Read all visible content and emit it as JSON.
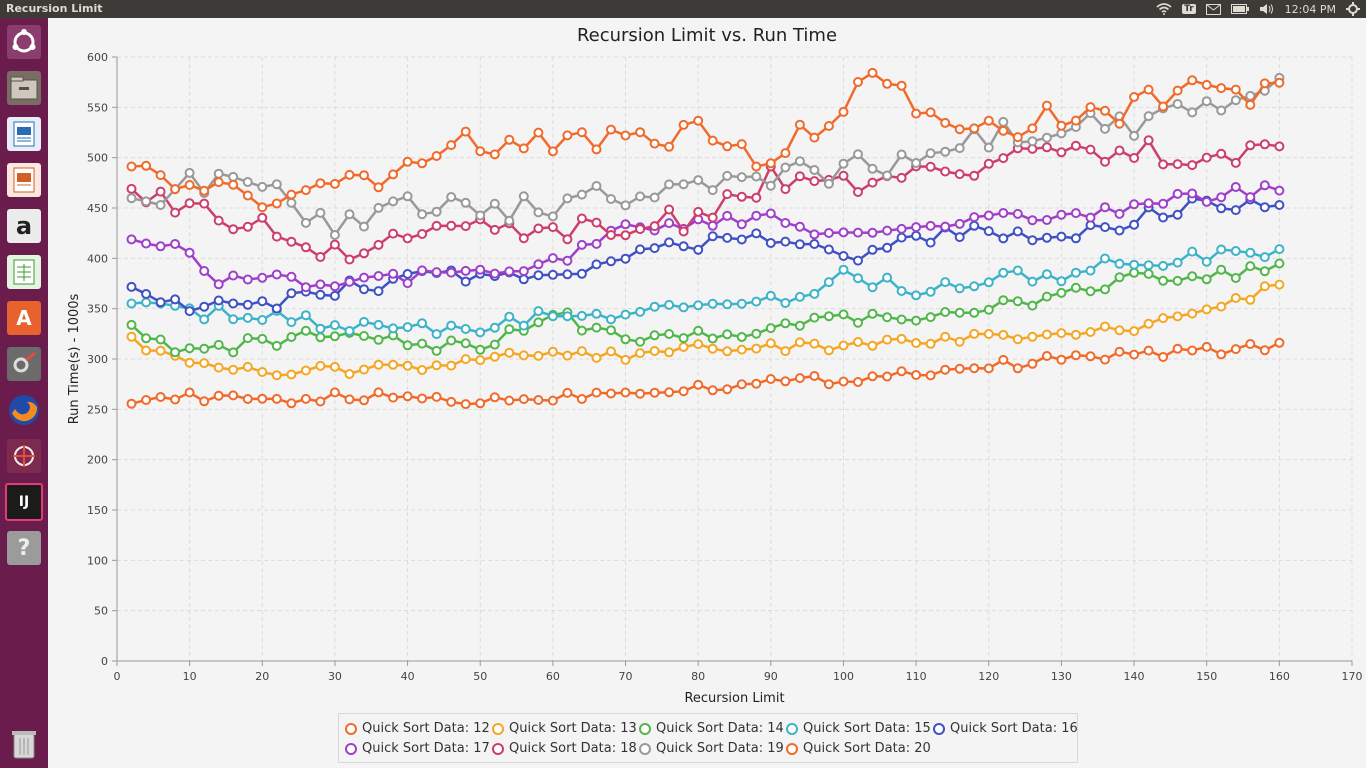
{
  "window": {
    "title": "Recursion Limit"
  },
  "tray": {
    "keyboard": "Tr",
    "time": "12:04 PM"
  },
  "launcher": {
    "items": [
      {
        "name": "ubuntu-dash-icon"
      },
      {
        "name": "files-icon"
      },
      {
        "name": "writer-icon"
      },
      {
        "name": "impress-icon"
      },
      {
        "name": "amazon-icon",
        "glyph": "a"
      },
      {
        "name": "calc-icon"
      },
      {
        "name": "software-center-icon",
        "glyph": "A"
      },
      {
        "name": "system-settings-icon"
      },
      {
        "name": "firefox-icon"
      },
      {
        "name": "screenshot-icon"
      },
      {
        "name": "intellij-icon",
        "glyph": "IJ"
      },
      {
        "name": "unknown-app-icon",
        "glyph": "?"
      },
      {
        "name": "trash-icon"
      }
    ]
  },
  "chart_data": {
    "type": "line",
    "title": "Recursion Limit vs. Run Time",
    "xlabel": "Recursion Limit",
    "ylabel": "Run Time(s) - 1000s",
    "xlim": [
      0,
      170
    ],
    "ylim": [
      0,
      600
    ],
    "xticks": [
      0,
      10,
      20,
      30,
      40,
      50,
      60,
      70,
      80,
      90,
      100,
      110,
      120,
      130,
      140,
      150,
      160,
      170
    ],
    "yticks": [
      0,
      50,
      100,
      150,
      200,
      250,
      300,
      350,
      400,
      450,
      500,
      550,
      600
    ],
    "grid": true,
    "legend_position": "bottom",
    "x_start": 2,
    "x_step": 2,
    "series": [
      {
        "name": "Quick Sort Data: 12",
        "color": "#f06b2b",
        "anchors": [
          [
            2,
            260
          ],
          [
            10,
            262
          ],
          [
            20,
            258
          ],
          [
            30,
            262
          ],
          [
            40,
            262
          ],
          [
            50,
            258
          ],
          [
            60,
            262
          ],
          [
            70,
            268
          ],
          [
            80,
            272
          ],
          [
            90,
            277
          ],
          [
            100,
            280
          ],
          [
            110,
            287
          ],
          [
            120,
            293
          ],
          [
            130,
            300
          ],
          [
            140,
            305
          ],
          [
            150,
            308
          ],
          [
            160,
            312
          ]
        ]
      },
      {
        "name": "Quick Sort Data: 13",
        "color": "#f5a623",
        "anchors": [
          [
            2,
            318
          ],
          [
            10,
            292
          ],
          [
            20,
            287
          ],
          [
            30,
            290
          ],
          [
            40,
            290
          ],
          [
            50,
            300
          ],
          [
            60,
            305
          ],
          [
            70,
            302
          ],
          [
            80,
            310
          ],
          [
            90,
            312
          ],
          [
            100,
            312
          ],
          [
            110,
            318
          ],
          [
            120,
            322
          ],
          [
            130,
            328
          ],
          [
            140,
            332
          ],
          [
            150,
            345
          ],
          [
            160,
            373
          ]
        ]
      },
      {
        "name": "Quick Sort Data: 14",
        "color": "#52b74b",
        "anchors": [
          [
            2,
            333
          ],
          [
            10,
            305
          ],
          [
            20,
            318
          ],
          [
            30,
            325
          ],
          [
            40,
            318
          ],
          [
            50,
            310
          ],
          [
            60,
            345
          ],
          [
            70,
            320
          ],
          [
            80,
            322
          ],
          [
            90,
            330
          ],
          [
            100,
            340
          ],
          [
            110,
            345
          ],
          [
            120,
            350
          ],
          [
            130,
            360
          ],
          [
            140,
            383
          ],
          [
            150,
            385
          ],
          [
            160,
            390
          ]
        ]
      },
      {
        "name": "Quick Sort Data: 15",
        "color": "#3db3c9",
        "anchors": [
          [
            2,
            358
          ],
          [
            10,
            345
          ],
          [
            20,
            345
          ],
          [
            30,
            330
          ],
          [
            40,
            330
          ],
          [
            50,
            328
          ],
          [
            60,
            345
          ],
          [
            70,
            345
          ],
          [
            80,
            352
          ],
          [
            90,
            355
          ],
          [
            100,
            382
          ],
          [
            110,
            370
          ],
          [
            120,
            380
          ],
          [
            130,
            385
          ],
          [
            140,
            398
          ],
          [
            150,
            400
          ],
          [
            160,
            405
          ]
        ]
      },
      {
        "name": "Quick Sort Data: 16",
        "color": "#3f51c3",
        "anchors": [
          [
            2,
            368
          ],
          [
            10,
            352
          ],
          [
            20,
            352
          ],
          [
            30,
            368
          ],
          [
            40,
            380
          ],
          [
            50,
            385
          ],
          [
            60,
            385
          ],
          [
            70,
            400
          ],
          [
            80,
            415
          ],
          [
            90,
            420
          ],
          [
            100,
            400
          ],
          [
            110,
            420
          ],
          [
            120,
            430
          ],
          [
            130,
            418
          ],
          [
            140,
            440
          ],
          [
            150,
            455
          ],
          [
            160,
            455
          ]
        ]
      },
      {
        "name": "Quick Sort Data: 17",
        "color": "#a03fc9",
        "anchors": [
          [
            2,
            418
          ],
          [
            10,
            410
          ],
          [
            14,
            378
          ],
          [
            20,
            378
          ],
          [
            30,
            378
          ],
          [
            40,
            382
          ],
          [
            50,
            385
          ],
          [
            60,
            398
          ],
          [
            70,
            428
          ],
          [
            80,
            435
          ],
          [
            90,
            440
          ],
          [
            100,
            422
          ],
          [
            110,
            428
          ],
          [
            120,
            440
          ],
          [
            130,
            442
          ],
          [
            140,
            450
          ],
          [
            150,
            462
          ],
          [
            160,
            468
          ]
        ]
      },
      {
        "name": "Quick Sort Data: 18",
        "color": "#cc3f6b",
        "anchors": [
          [
            2,
            470
          ],
          [
            10,
            445
          ],
          [
            20,
            435
          ],
          [
            30,
            405
          ],
          [
            40,
            425
          ],
          [
            50,
            430
          ],
          [
            60,
            430
          ],
          [
            70,
            432
          ],
          [
            80,
            440
          ],
          [
            90,
            480
          ],
          [
            100,
            475
          ],
          [
            110,
            485
          ],
          [
            120,
            495
          ],
          [
            130,
            505
          ],
          [
            140,
            508
          ],
          [
            150,
            500
          ],
          [
            160,
            515
          ]
        ]
      },
      {
        "name": "Quick Sort Data: 19",
        "color": "#999999",
        "anchors": [
          [
            2,
            452
          ],
          [
            10,
            475
          ],
          [
            20,
            470
          ],
          [
            30,
            432
          ],
          [
            40,
            455
          ],
          [
            50,
            450
          ],
          [
            60,
            452
          ],
          [
            70,
            462
          ],
          [
            80,
            470
          ],
          [
            90,
            480
          ],
          [
            100,
            490
          ],
          [
            110,
            498
          ],
          [
            120,
            520
          ],
          [
            130,
            535
          ],
          [
            140,
            530
          ],
          [
            150,
            555
          ],
          [
            160,
            570
          ]
        ]
      },
      {
        "name": "Quick Sort Data: 20",
        "color": "#f06b2b",
        "anchors": [
          [
            2,
            487
          ],
          [
            10,
            465
          ],
          [
            20,
            460
          ],
          [
            30,
            460
          ],
          [
            40,
            500
          ],
          [
            50,
            520
          ],
          [
            60,
            510
          ],
          [
            70,
            520
          ],
          [
            80,
            525
          ],
          [
            90,
            500
          ],
          [
            100,
            545
          ],
          [
            104,
            588
          ],
          [
            110,
            555
          ],
          [
            120,
            528
          ],
          [
            130,
            540
          ],
          [
            140,
            550
          ],
          [
            150,
            565
          ],
          [
            160,
            562
          ]
        ]
      }
    ]
  }
}
